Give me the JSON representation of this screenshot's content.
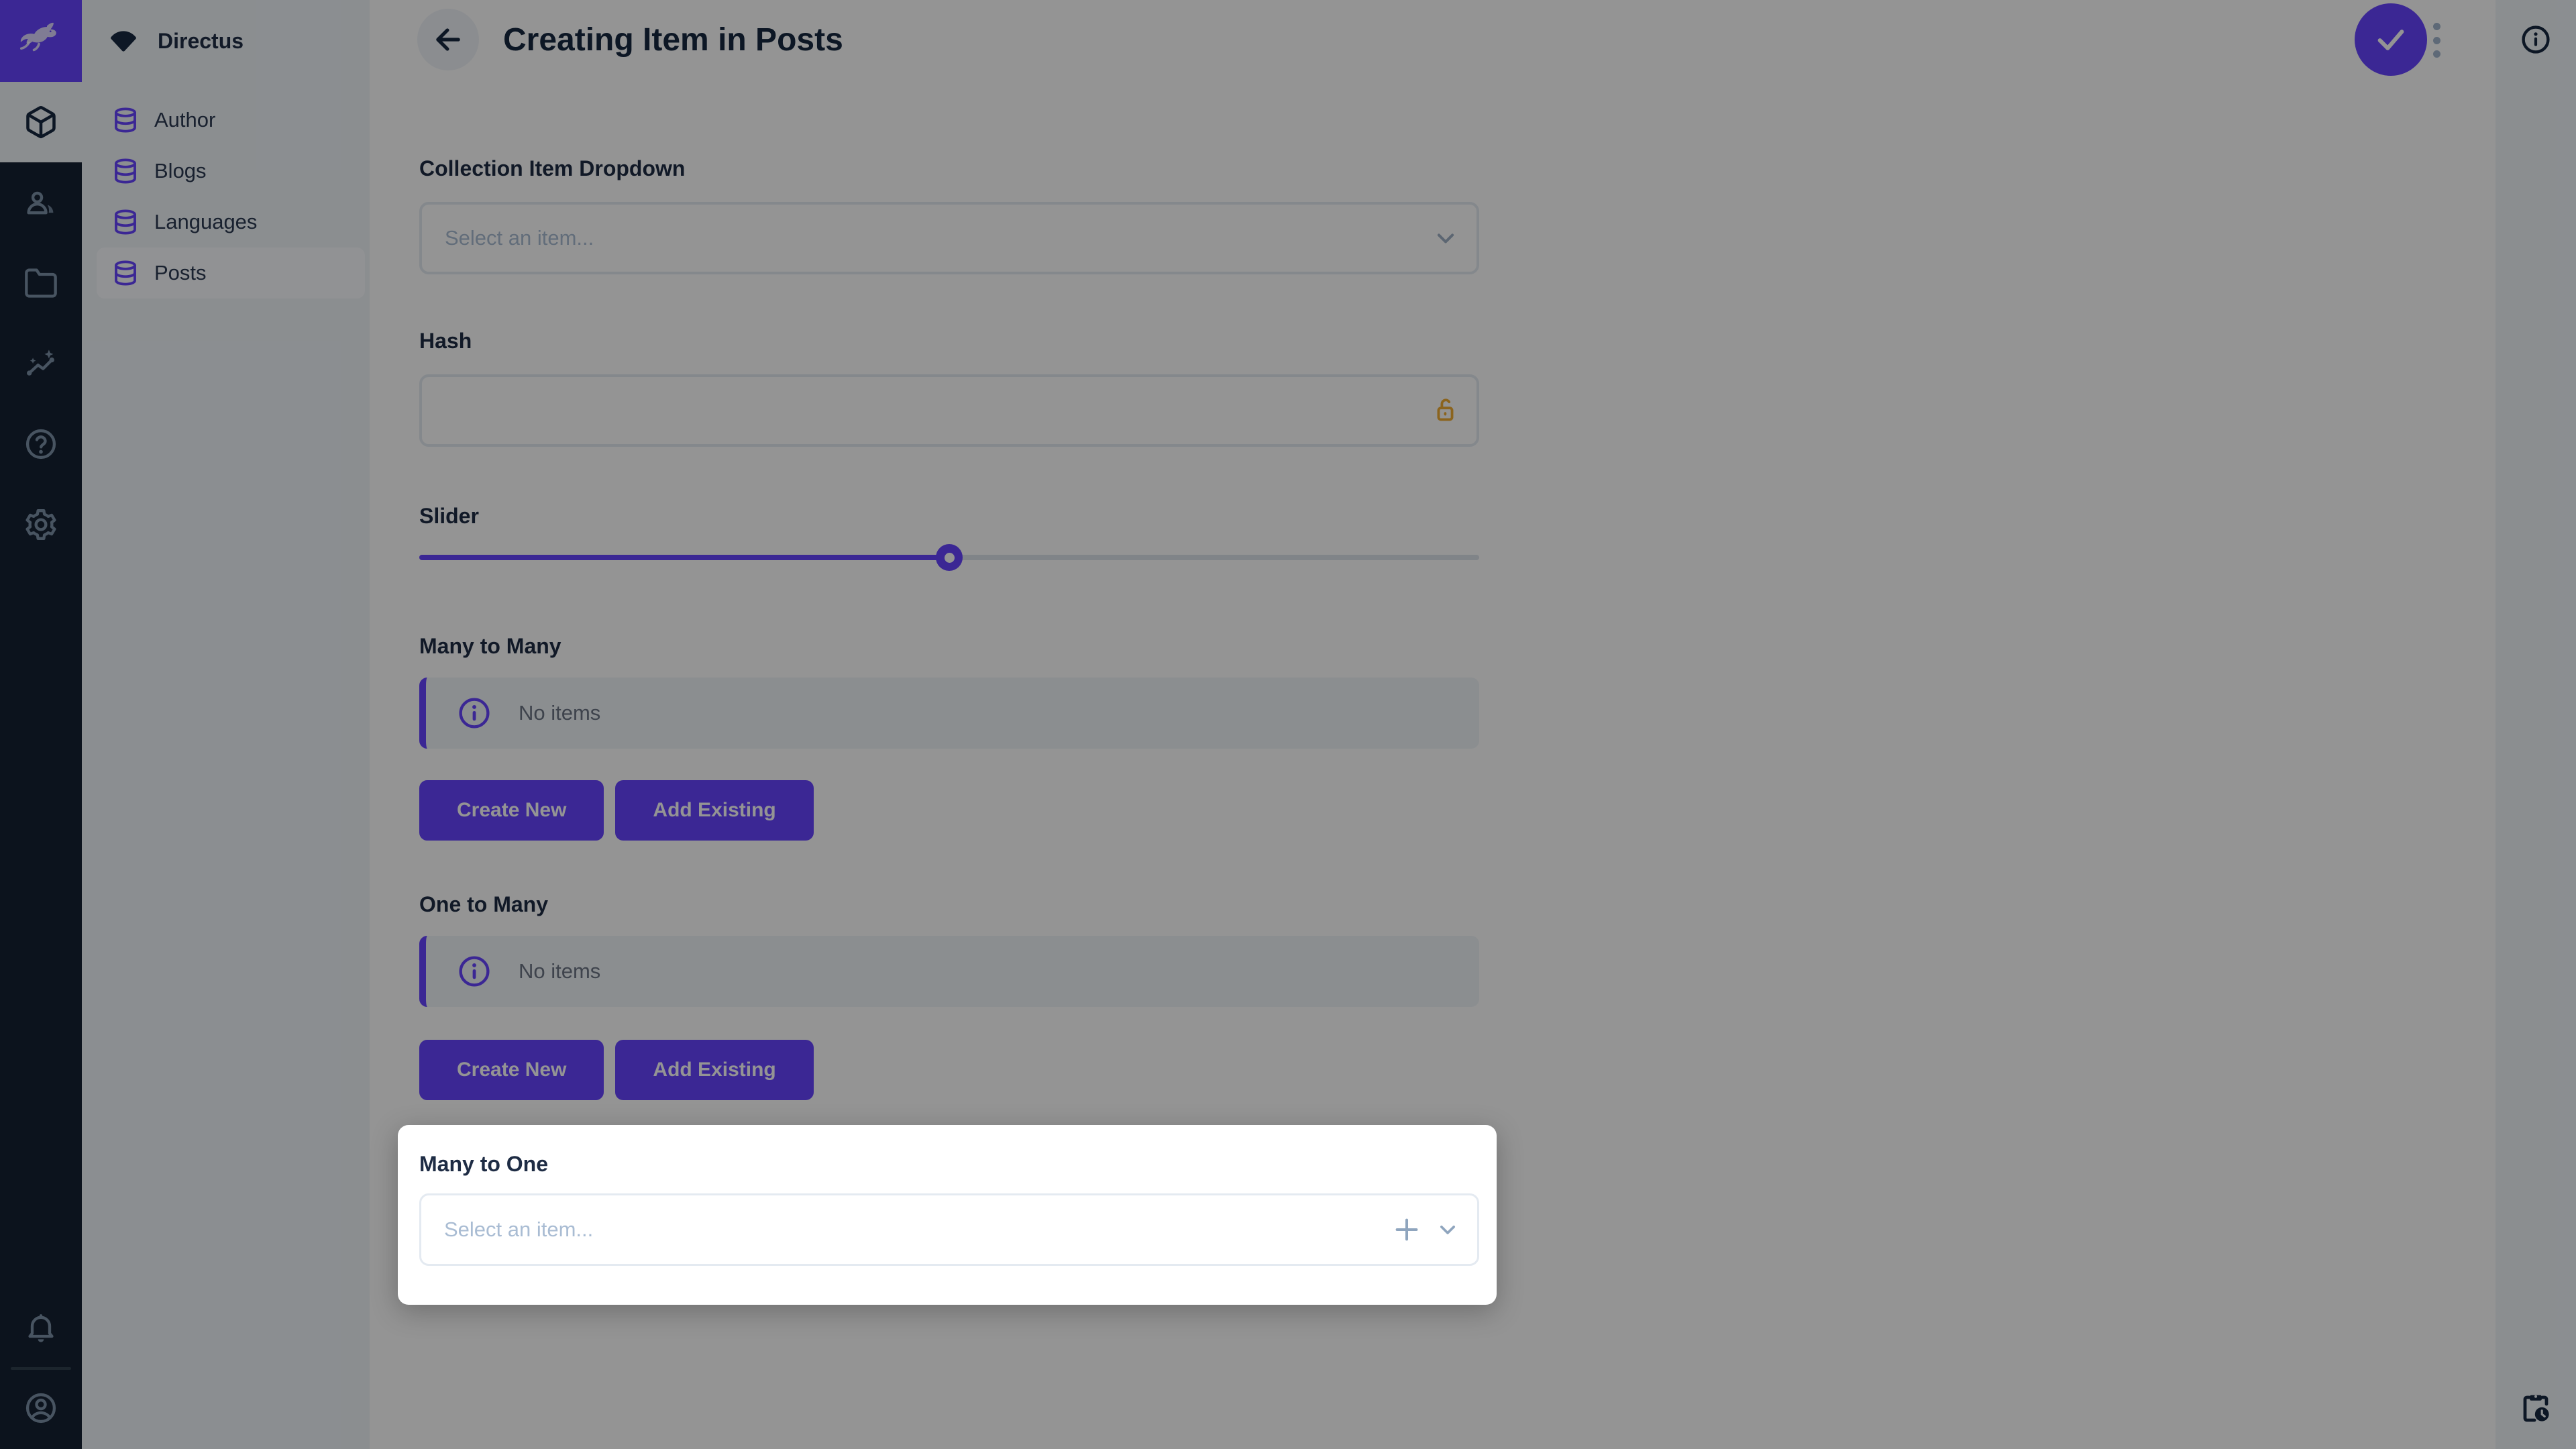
{
  "app": {
    "accent_color": "#6644FF",
    "module_bar_color": "#152132",
    "sidebar_color": "#F0F4F9",
    "warning_color": "#F5B63C"
  },
  "module_bar": {
    "logo_icon": "directus-rabbit-logo",
    "items": [
      {
        "icon": "content-box-icon",
        "active": true
      },
      {
        "icon": "users-icon",
        "active": false
      },
      {
        "icon": "files-folder-icon",
        "active": false
      },
      {
        "icon": "insights-icon",
        "active": false
      },
      {
        "icon": "help-icon",
        "active": false
      },
      {
        "icon": "settings-gear-icon",
        "active": false
      }
    ],
    "bottom": [
      {
        "icon": "notifications-bell-icon"
      },
      {
        "icon": "user-avatar-icon"
      }
    ]
  },
  "sidebar": {
    "project_name": "Directus",
    "project_icon": "project-fan-icon",
    "items": [
      {
        "label": "Author",
        "icon": "database-icon",
        "active": false
      },
      {
        "label": "Blogs",
        "icon": "database-icon",
        "active": false
      },
      {
        "label": "Languages",
        "icon": "database-icon",
        "active": false
      },
      {
        "label": "Posts",
        "icon": "database-icon",
        "active": true
      }
    ]
  },
  "header": {
    "title": "Creating Item in Posts",
    "back_icon": "arrow-left-icon",
    "save_icon": "check-icon",
    "more_icon": "kebab-menu-icon",
    "info_icon": "info-icon"
  },
  "right_sidebar": {
    "top_icon": "info-icon",
    "bottom_icon": "clipboard-clock-icon"
  },
  "form": {
    "collection_item_dropdown": {
      "label": "Collection Item Dropdown",
      "placeholder": "Select an item...",
      "chevron": "chevron-down-icon"
    },
    "hash": {
      "label": "Hash",
      "value": "",
      "masked_icon": "lock-open-icon"
    },
    "slider": {
      "label": "Slider",
      "value_percent": 50
    },
    "many_to_many": {
      "label": "Many to Many",
      "empty_text": "No items",
      "create_label": "Create New",
      "add_label": "Add Existing"
    },
    "one_to_many": {
      "label": "One to Many",
      "empty_text": "No items",
      "create_label": "Create New",
      "add_label": "Add Existing"
    },
    "many_to_one": {
      "label": "Many to One",
      "placeholder": "Select an item...",
      "add_icon": "plus-icon",
      "chevron": "chevron-down-icon"
    }
  },
  "overlay": {
    "dimmed": true,
    "highlighted_section": "Many to One"
  }
}
